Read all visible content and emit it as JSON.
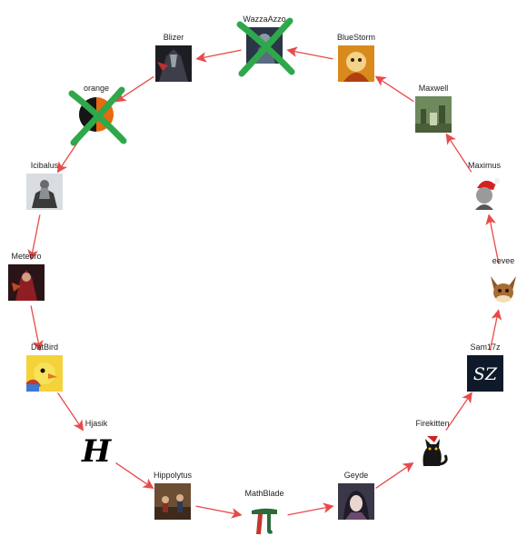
{
  "diagram": {
    "nodes": [
      {
        "id": "wazzaazzo",
        "label": "WazzaAzzo",
        "icon": "dark-figure-avatar-icon",
        "eliminated": true
      },
      {
        "id": "bluestorm",
        "label": "BlueStorm",
        "icon": "fire-creature-avatar-icon",
        "eliminated": false
      },
      {
        "id": "maxwell",
        "label": "Maxwell",
        "icon": "forest-ruins-avatar-icon",
        "eliminated": false
      },
      {
        "id": "maximus",
        "label": "Maximus",
        "icon": "santa-hat-character-avatar-icon",
        "eliminated": false
      },
      {
        "id": "eevee",
        "label": "eevee",
        "icon": "eevee-avatar-icon",
        "eliminated": false
      },
      {
        "id": "sam17z",
        "label": "Sam17z",
        "icon": "sz-logo-avatar-icon",
        "eliminated": false
      },
      {
        "id": "firekitten",
        "label": "Firekitten",
        "icon": "black-cat-avatar-icon",
        "eliminated": false
      },
      {
        "id": "geyde",
        "label": "Geyde",
        "icon": "anime-girl-avatar-icon",
        "eliminated": false
      },
      {
        "id": "mathblade",
        "label": "MathBlade",
        "icon": "pi-symbol-avatar-icon",
        "eliminated": false
      },
      {
        "id": "hippolytus",
        "label": "Hippolytus",
        "icon": "painting-avatar-icon",
        "eliminated": false
      },
      {
        "id": "hjasik",
        "label": "Hjasik",
        "icon": "gothic-h-letter-avatar-icon",
        "eliminated": false
      },
      {
        "id": "datbird",
        "label": "DatBird",
        "icon": "yellow-bird-avatar-icon",
        "eliminated": false
      },
      {
        "id": "meteoro",
        "label": "Meteoro",
        "icon": "red-warrior-avatar-icon",
        "eliminated": false
      },
      {
        "id": "icibalus",
        "label": "Icibalus",
        "icon": "knight-on-horse-avatar-icon",
        "eliminated": false
      },
      {
        "id": "orange",
        "label": "orange",
        "icon": "orange-circle-avatar-icon",
        "eliminated": true
      },
      {
        "id": "blizer",
        "label": "Blizer",
        "icon": "dark-warrior-avatar-icon",
        "eliminated": false
      }
    ],
    "arrows": [
      {
        "from": "wazzaazzo",
        "to": "blizer"
      },
      {
        "from": "bluestorm",
        "to": "wazzaazzo"
      },
      {
        "from": "maxwell",
        "to": "bluestorm"
      },
      {
        "from": "maximus",
        "to": "maxwell"
      },
      {
        "from": "eevee",
        "to": "maximus"
      },
      {
        "from": "sam17z",
        "to": "eevee"
      },
      {
        "from": "firekitten",
        "to": "sam17z"
      },
      {
        "from": "geyde",
        "to": "firekitten"
      },
      {
        "from": "mathblade",
        "to": "geyde"
      },
      {
        "from": "hippolytus",
        "to": "mathblade"
      },
      {
        "from": "hjasik",
        "to": "hippolytus"
      },
      {
        "from": "datbird",
        "to": "hjasik"
      },
      {
        "from": "meteoro",
        "to": "datbird"
      },
      {
        "from": "icibalus",
        "to": "meteoro"
      },
      {
        "from": "orange",
        "to": "icibalus"
      },
      {
        "from": "blizer",
        "to": "orange"
      }
    ],
    "colors": {
      "arrow": "#e84a4a",
      "cross": "#2ea84a",
      "label": "#222222"
    }
  }
}
